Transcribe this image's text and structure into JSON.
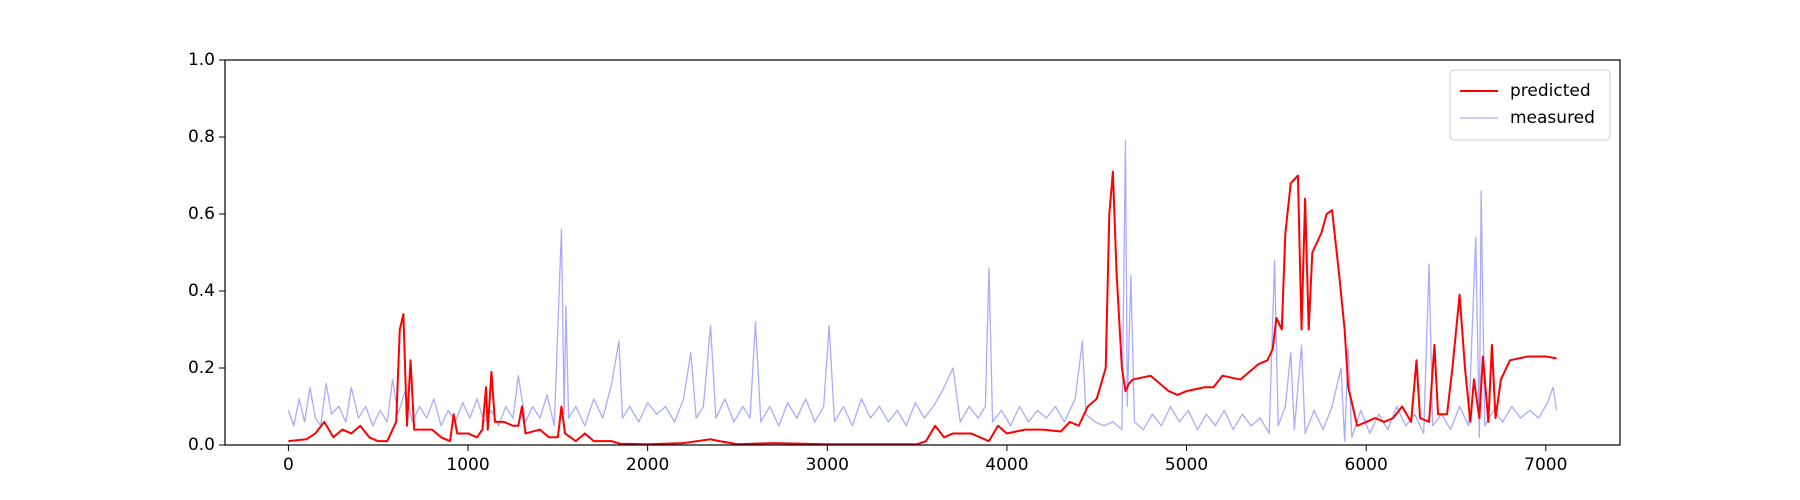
{
  "chart_data": {
    "type": "line",
    "xlim": [
      -353,
      7413
    ],
    "xticks": [
      0,
      1000,
      2000,
      3000,
      4000,
      5000,
      6000,
      7000
    ],
    "ylim": [
      0,
      1
    ],
    "yticks": [
      {
        "value": 0,
        "label": "0.0"
      },
      {
        "value": 0.2,
        "label": "0.2"
      },
      {
        "value": 0.4,
        "label": "0.4"
      },
      {
        "value": 0.6,
        "label": "0.6"
      },
      {
        "value": 0.8,
        "label": "0.8"
      },
      {
        "value": 1,
        "label": "1.0"
      }
    ],
    "legend": "upper right",
    "series": [
      {
        "name": "predicted",
        "color": "#ff0000",
        "x": [
          0,
          100,
          150,
          200,
          250,
          300,
          350,
          400,
          450,
          500,
          550,
          600,
          620,
          640,
          660,
          680,
          700,
          800,
          850,
          900,
          920,
          940,
          1000,
          1050,
          1080,
          1100,
          1110,
          1130,
          1150,
          1200,
          1250,
          1280,
          1300,
          1320,
          1400,
          1450,
          1500,
          1520,
          1540,
          1600,
          1650,
          1700,
          1800,
          1850,
          1900,
          2000,
          2200,
          2350,
          2400,
          2500,
          2700,
          3000,
          3300,
          3500,
          3550,
          3600,
          3650,
          3700,
          3800,
          3850,
          3900,
          3950,
          4000,
          4100,
          4200,
          4300,
          4350,
          4400,
          4450,
          4500,
          4550,
          4570,
          4590,
          4610,
          4640,
          4660,
          4680,
          4700,
          4800,
          4850,
          4900,
          4950,
          5000,
          5100,
          5150,
          5200,
          5300,
          5400,
          5450,
          5480,
          5500,
          5530,
          5550,
          5580,
          5620,
          5640,
          5660,
          5680,
          5700,
          5750,
          5780,
          5810,
          5850,
          5880,
          5900,
          5950,
          6000,
          6050,
          6100,
          6150,
          6200,
          6250,
          6280,
          6300,
          6350,
          6380,
          6400,
          6450,
          6480,
          6520,
          6550,
          6580,
          6600,
          6630,
          6650,
          6680,
          6700,
          6720,
          6750,
          6800,
          6900,
          7000,
          7060
        ],
        "values": [
          0.01,
          0.015,
          0.03,
          0.06,
          0.02,
          0.04,
          0.03,
          0.05,
          0.02,
          0.01,
          0.01,
          0.06,
          0.3,
          0.34,
          0.05,
          0.22,
          0.04,
          0.04,
          0.02,
          0.01,
          0.08,
          0.03,
          0.03,
          0.02,
          0.04,
          0.15,
          0.04,
          0.19,
          0.06,
          0.06,
          0.05,
          0.05,
          0.1,
          0.03,
          0.04,
          0.02,
          0.02,
          0.1,
          0.03,
          0.01,
          0.03,
          0.01,
          0.01,
          0.003,
          0.003,
          0.002,
          0.005,
          0.015,
          0.01,
          0.002,
          0.005,
          0.002,
          0.002,
          0.002,
          0.01,
          0.05,
          0.02,
          0.03,
          0.03,
          0.02,
          0.01,
          0.05,
          0.03,
          0.04,
          0.04,
          0.035,
          0.06,
          0.05,
          0.1,
          0.12,
          0.2,
          0.6,
          0.71,
          0.45,
          0.2,
          0.14,
          0.16,
          0.17,
          0.18,
          0.16,
          0.14,
          0.13,
          0.14,
          0.15,
          0.15,
          0.18,
          0.17,
          0.21,
          0.22,
          0.25,
          0.33,
          0.3,
          0.55,
          0.68,
          0.7,
          0.3,
          0.64,
          0.3,
          0.5,
          0.55,
          0.6,
          0.61,
          0.44,
          0.3,
          0.15,
          0.05,
          0.06,
          0.07,
          0.06,
          0.07,
          0.1,
          0.06,
          0.22,
          0.07,
          0.06,
          0.26,
          0.08,
          0.08,
          0.2,
          0.39,
          0.2,
          0.06,
          0.17,
          0.07,
          0.23,
          0.06,
          0.26,
          0.07,
          0.17,
          0.22,
          0.23,
          0.23,
          0.225
        ]
      },
      {
        "name": "measured",
        "color": "#aaaaff",
        "x": [
          0,
          30,
          60,
          90,
          120,
          150,
          180,
          210,
          240,
          280,
          320,
          350,
          390,
          430,
          470,
          510,
          550,
          580,
          610,
          650,
          690,
          730,
          770,
          810,
          850,
          890,
          930,
          970,
          1010,
          1050,
          1090,
          1130,
          1170,
          1210,
          1250,
          1280,
          1320,
          1360,
          1400,
          1440,
          1480,
          1520,
          1535,
          1545,
          1560,
          1600,
          1650,
          1700,
          1750,
          1800,
          1840,
          1860,
          1900,
          1950,
          2000,
          2050,
          2100,
          2150,
          2200,
          2240,
          2270,
          2310,
          2350,
          2380,
          2430,
          2480,
          2530,
          2570,
          2600,
          2630,
          2680,
          2730,
          2780,
          2830,
          2880,
          2930,
          2980,
          3010,
          3040,
          3090,
          3140,
          3190,
          3240,
          3290,
          3340,
          3390,
          3440,
          3490,
          3540,
          3590,
          3640,
          3700,
          3740,
          3790,
          3840,
          3880,
          3900,
          3920,
          3970,
          4020,
          4070,
          4120,
          4170,
          4220,
          4270,
          4320,
          4380,
          4420,
          4440,
          4490,
          4540,
          4590,
          4640,
          4660,
          4670,
          4690,
          4710,
          4760,
          4810,
          4860,
          4910,
          4960,
          5010,
          5060,
          5110,
          5160,
          5210,
          5260,
          5310,
          5360,
          5410,
          5460,
          5490,
          5510,
          5550,
          5580,
          5600,
          5640,
          5660,
          5710,
          5760,
          5810,
          5860,
          5880,
          5900,
          5920,
          5970,
          6020,
          6070,
          6120,
          6170,
          6220,
          6270,
          6320,
          6350,
          6370,
          6420,
          6470,
          6520,
          6570,
          6610,
          6630,
          6640,
          6660,
          6710,
          6760,
          6810,
          6860,
          6910,
          6960,
          7010,
          7040,
          7060
        ],
        "values": [
          0.09,
          0.05,
          0.12,
          0.06,
          0.15,
          0.07,
          0.05,
          0.16,
          0.08,
          0.1,
          0.06,
          0.15,
          0.07,
          0.1,
          0.05,
          0.09,
          0.06,
          0.17,
          0.08,
          0.14,
          0.06,
          0.1,
          0.07,
          0.12,
          0.05,
          0.09,
          0.06,
          0.11,
          0.07,
          0.12,
          0.06,
          0.09,
          0.05,
          0.1,
          0.07,
          0.18,
          0.06,
          0.1,
          0.07,
          0.13,
          0.05,
          0.56,
          0.08,
          0.36,
          0.07,
          0.1,
          0.05,
          0.12,
          0.07,
          0.16,
          0.27,
          0.07,
          0.1,
          0.06,
          0.11,
          0.08,
          0.1,
          0.06,
          0.12,
          0.24,
          0.07,
          0.1,
          0.31,
          0.07,
          0.12,
          0.06,
          0.1,
          0.07,
          0.32,
          0.06,
          0.1,
          0.05,
          0.11,
          0.07,
          0.12,
          0.06,
          0.1,
          0.31,
          0.06,
          0.1,
          0.05,
          0.12,
          0.07,
          0.1,
          0.06,
          0.09,
          0.05,
          0.11,
          0.07,
          0.1,
          0.14,
          0.2,
          0.06,
          0.1,
          0.07,
          0.1,
          0.46,
          0.06,
          0.09,
          0.05,
          0.1,
          0.06,
          0.09,
          0.07,
          0.1,
          0.06,
          0.12,
          0.27,
          0.08,
          0.06,
          0.05,
          0.06,
          0.04,
          0.79,
          0.1,
          0.44,
          0.06,
          0.04,
          0.08,
          0.05,
          0.1,
          0.06,
          0.09,
          0.04,
          0.08,
          0.05,
          0.09,
          0.04,
          0.08,
          0.05,
          0.07,
          0.03,
          0.48,
          0.05,
          0.1,
          0.24,
          0.04,
          0.26,
          0.03,
          0.09,
          0.04,
          0.1,
          0.2,
          0.01,
          0.25,
          0.02,
          0.09,
          0.03,
          0.08,
          0.04,
          0.1,
          0.05,
          0.08,
          0.03,
          0.47,
          0.05,
          0.08,
          0.04,
          0.1,
          0.05,
          0.54,
          0.02,
          0.66,
          0.05,
          0.09,
          0.06,
          0.1,
          0.07,
          0.09,
          0.07,
          0.11,
          0.15,
          0.09
        ]
      }
    ]
  }
}
